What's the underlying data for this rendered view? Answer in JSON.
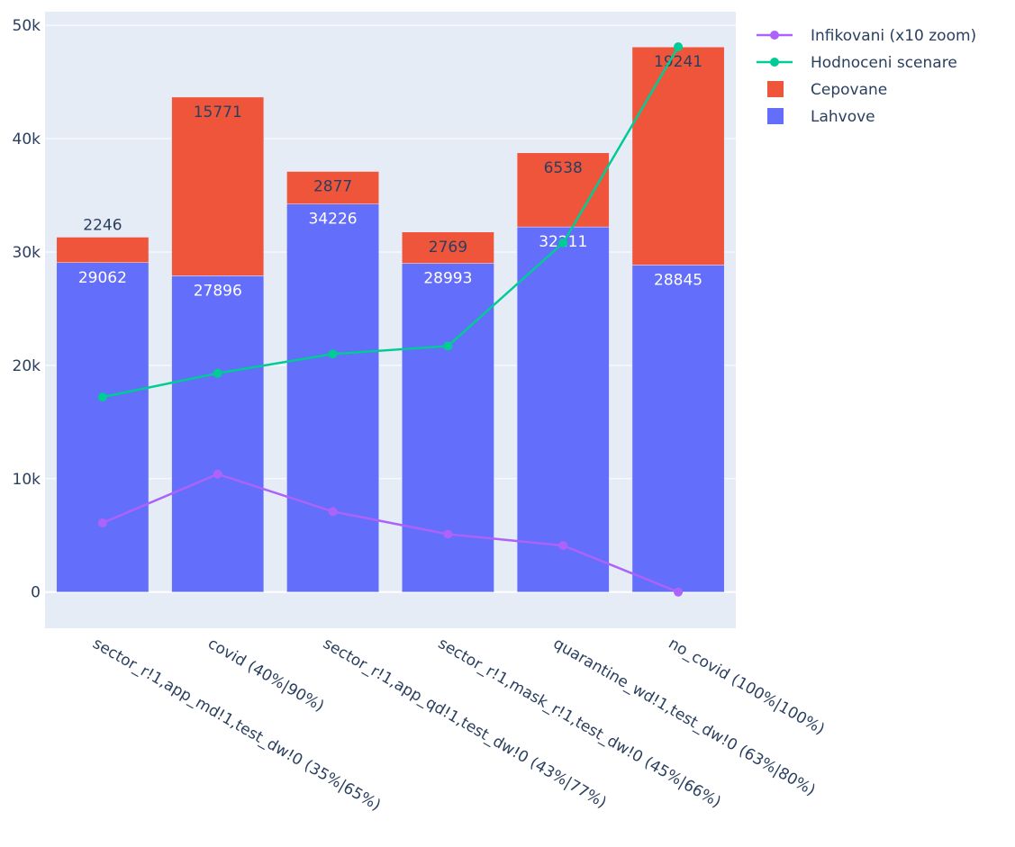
{
  "chart_data": {
    "type": "bar",
    "barmode": "stack",
    "categories": [
      "sector_r!1,app_md!1,test_dw!0 (35%|65%)",
      "covid (40%|90%)",
      "sector_r!1,app_qd!1,test_dw!0 (43%|77%)",
      "sector_r!1,mask_r!1,test_dw!0 (45%|66%)",
      "quarantine_wd!1,test_dw!0 (63%|80%)",
      "no_covid (100%|100%)"
    ],
    "bar_series": [
      {
        "name": "Lahvove",
        "values": [
          29062,
          27896,
          34226,
          28993,
          32211,
          28845
        ],
        "color": "#636efa"
      },
      {
        "name": "Cepovane",
        "values": [
          2246,
          15771,
          2877,
          2769,
          6538,
          19241
        ],
        "color": "#ef553b"
      }
    ],
    "line_series": [
      {
        "name": "Infikovani (x10 zoom)",
        "values": [
          6100,
          10400,
          7100,
          5100,
          4100,
          0
        ],
        "color": "#ab63fa"
      },
      {
        "name": "Hodnoceni scenare",
        "values": [
          17200,
          19300,
          21000,
          21700,
          30800,
          48100
        ],
        "color": "#00cc96"
      }
    ],
    "y_ticks": [
      0,
      10000,
      20000,
      30000,
      40000,
      50000
    ],
    "y_tick_labels": [
      "0",
      "10k",
      "20k",
      "30k",
      "40k",
      "50k"
    ],
    "ylim": [
      -3200,
      51200
    ],
    "legend": {
      "position": "top-right",
      "entries": [
        "Infikovani (x10 zoom)",
        "Hodnoceni scenare",
        "Cepovane",
        "Lahvove"
      ]
    },
    "colors": {
      "plot_bg": "#e5ecf6",
      "grid": "#ffffff",
      "text": "#2a3f5f"
    }
  }
}
